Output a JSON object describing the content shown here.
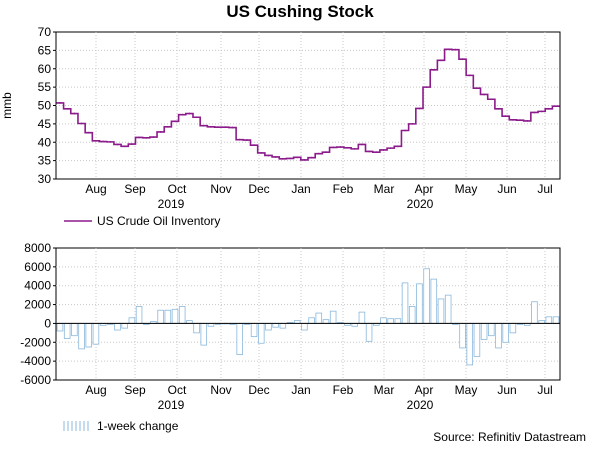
{
  "title": "US Cushing Stock",
  "source": "Source: Refinitiv Datastream",
  "months": [
    "Aug",
    "Sep",
    "Oct",
    "Nov",
    "Dec",
    "Jan",
    "Feb",
    "Mar",
    "Apr",
    "May",
    "Jun",
    "Jul"
  ],
  "years": [
    "2019",
    "2020"
  ],
  "chart_data": [
    {
      "type": "line",
      "title": "US Cushing Stock",
      "ylabel": "mmb",
      "ylim": [
        30,
        70
      ],
      "yticks": [
        30,
        35,
        40,
        45,
        50,
        55,
        60,
        65,
        70
      ],
      "grid": true,
      "legend_position": "bottom-left",
      "series": [
        {
          "name": "US Crude Oil Inventory",
          "color": "#8b1a8b",
          "values": [
            50.7,
            49.1,
            47.8,
            45.1,
            42.6,
            40.4,
            40.2,
            40.1,
            39.4,
            38.9,
            39.5,
            41.3,
            41.2,
            41.4,
            42.8,
            44.2,
            45.7,
            47.5,
            47.8,
            46.8,
            44.5,
            44.2,
            44.1,
            44.1,
            44.0,
            40.7,
            40.6,
            39.2,
            37.1,
            36.4,
            36.0,
            35.5,
            35.6,
            35.9,
            35.2,
            35.8,
            36.9,
            37.3,
            38.6,
            38.7,
            38.5,
            38.2,
            39.4,
            37.5,
            37.3,
            37.9,
            38.4,
            38.9,
            43.2,
            45.0,
            49.2,
            55.0,
            59.7,
            62.3,
            65.3,
            65.2,
            62.6,
            58.2,
            54.7,
            53.0,
            51.7,
            49.1,
            47.1,
            46.1,
            46.0,
            45.8,
            48.1,
            48.4,
            49.1,
            49.8
          ]
        }
      ]
    },
    {
      "type": "bar",
      "title": "",
      "ylabel": "",
      "ylim": [
        -6000,
        8000
      ],
      "yticks": [
        -6000,
        -4000,
        -2000,
        0,
        2000,
        4000,
        6000,
        8000
      ],
      "grid": true,
      "legend_position": "bottom-left",
      "series": [
        {
          "name": "1-week change",
          "color": "#8ab8dc",
          "values": [
            -800,
            -1600,
            -1300,
            -2700,
            -2500,
            -2200,
            -200,
            -100,
            -700,
            -500,
            600,
            1800,
            -100,
            200,
            1400,
            1400,
            1500,
            1800,
            300,
            -1000,
            -2300,
            -300,
            -100,
            0,
            -100,
            -3300,
            -100,
            -1400,
            -2100,
            -700,
            -400,
            -500,
            100,
            300,
            -700,
            600,
            1100,
            400,
            1300,
            100,
            -200,
            -300,
            1200,
            -1900,
            -200,
            600,
            500,
            500,
            4300,
            1800,
            4200,
            5800,
            4700,
            2600,
            3000,
            -100,
            -2600,
            -4400,
            -3500,
            -1700,
            -1300,
            -2600,
            -2000,
            -1000,
            -100,
            -200,
            2300,
            300,
            700,
            700
          ]
        }
      ]
    }
  ],
  "top_chart": {
    "y_axis_label": "mmb",
    "ytick_labels": [
      "30",
      "35",
      "40",
      "45",
      "50",
      "55",
      "60",
      "65",
      "70"
    ],
    "legend_label": "US Crude Oil Inventory"
  },
  "bottom_chart": {
    "ytick_labels": [
      "-6000",
      "-4000",
      "-2000",
      "0",
      "2000",
      "4000",
      "6000",
      "8000"
    ],
    "legend_label": "1-week change"
  }
}
